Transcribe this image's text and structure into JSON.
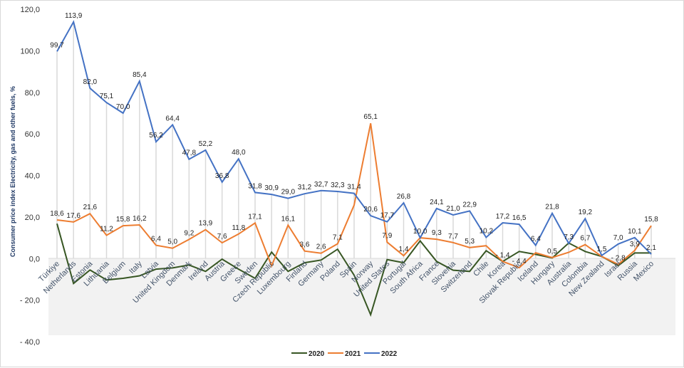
{
  "chart_data": {
    "type": "line",
    "title": "",
    "xlabel": "",
    "ylabel": "Consumer price index Electricity, gas and other fuels, %",
    "ylim": [
      -40,
      120
    ],
    "yticks": [
      120,
      100,
      80,
      60,
      40,
      20,
      0,
      -20,
      -40
    ],
    "ytick_labels": [
      "120,0",
      "100,0",
      "80,0",
      "60,0",
      "40,0",
      "20,0",
      "0,0",
      "- 20,0",
      "- 40,0"
    ],
    "grid": "vertical drop lines per category",
    "legend_position": "bottom-center",
    "categories": [
      "Türkiye",
      "Netherlands",
      "Estonia",
      "Lithuania",
      "Belgium",
      "Italy",
      "Latvia",
      "United Kingdom",
      "Denmark",
      "Ireland",
      "Austria",
      "Greece",
      "Sweden",
      "Czech Republic",
      "Luxembourg",
      "Finland",
      "Germany",
      "Poland",
      "Spain",
      "Norway",
      "United States",
      "Portugal",
      "South Africa",
      "France",
      "Slovenia",
      "Switzerland",
      "Chile",
      "Korea",
      "Slovak Republic",
      "Iceland",
      "Hungary",
      "Australia",
      "Colombia",
      "New Zealand",
      "Israel",
      "Russia",
      "Mexico"
    ],
    "series": [
      {
        "name": "2020",
        "color": "#375623",
        "values": [
          16.8,
          -12.0,
          -5.5,
          -10.3,
          -9.5,
          -8.3,
          -5.1,
          -4.5,
          -3.1,
          -6.2,
          -0.3,
          -5.1,
          -9.5,
          3.1,
          -6.2,
          -2.0,
          -0.7,
          4.5,
          -8.0,
          -27.0,
          -0.5,
          -2.0,
          8.5,
          -1.4,
          -5.6,
          -6.2,
          3.8,
          -1.4,
          3.4,
          2.0,
          0.3,
          7.5,
          3.4,
          1.0,
          -3.4,
          2.7,
          2.7
        ],
        "labels": []
      },
      {
        "name": "2021",
        "color": "#ed7d31",
        "values": [
          18.6,
          17.6,
          21.6,
          11.2,
          15.8,
          16.2,
          6.4,
          5.0,
          9.2,
          13.9,
          7.6,
          11.8,
          17.1,
          -3.5,
          16.1,
          3.6,
          2.6,
          7.1,
          25.7,
          65.1,
          7.9,
          1.4,
          10.0,
          9.3,
          7.7,
          5.3,
          6.2,
          -1.4,
          -4.4,
          2.8,
          0.5,
          3.0,
          6.7,
          1.0,
          -2.8,
          3.9,
          15.8
        ],
        "labels": [
          "18,6",
          "17,6",
          "21,6",
          "11,2",
          "15,8",
          "16,2",
          "6,4",
          "5,0",
          "9,2",
          "13,9",
          "7,6",
          "11,8",
          "17,1",
          "",
          "16,1",
          "3,6",
          "2,6",
          "7,1",
          "",
          "65,1",
          "7,9",
          "1,4",
          "",
          "9,3",
          "7,7",
          "5,3",
          "",
          "- 1,4",
          "- 4,4",
          "",
          "0,5",
          "",
          "6,7",
          "",
          "- 2,8",
          "3,9",
          "15,8"
        ]
      },
      {
        "name": "2022",
        "color": "#4472c4",
        "values": [
          99.7,
          113.9,
          82.0,
          75.1,
          70.0,
          85.4,
          56.2,
          64.4,
          47.8,
          52.2,
          36.8,
          48.0,
          31.8,
          30.9,
          29.0,
          31.2,
          32.7,
          32.3,
          31.4,
          20.6,
          17.7,
          26.8,
          10.0,
          24.1,
          21.0,
          22.9,
          10.2,
          17.2,
          16.5,
          6.4,
          21.8,
          7.3,
          19.2,
          1.5,
          7.0,
          10.1,
          2.1
        ],
        "labels": [
          "99,7",
          "113,9",
          "82,0",
          "75,1",
          "70,0",
          "85,4",
          "56,2",
          "64,4",
          "47,8",
          "52,2",
          "36,8",
          "48,0",
          "31,8",
          "30,9",
          "29,0",
          "31,2",
          "32,7",
          "32,3",
          "31,4",
          "20,6",
          "17,7",
          "26,8",
          "10,0",
          "24,1",
          "21,0",
          "22,9",
          "10,2",
          "17,2",
          "16,5",
          "6,4",
          "21,8",
          "7,3",
          "19,2",
          "1,5",
          "7,0",
          "10,1",
          "2,1"
        ]
      }
    ],
    "legend": [
      "2020",
      "2021",
      "2022"
    ]
  }
}
